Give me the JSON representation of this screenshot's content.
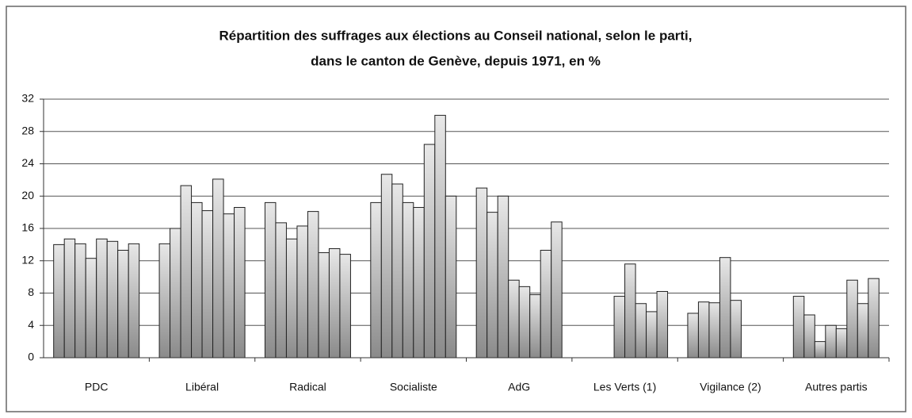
{
  "chart_data": {
    "type": "bar",
    "title": [
      "Répartition des suffrages aux élections au Conseil national, selon le parti,",
      "dans le canton de Genève, depuis 1971, en %"
    ],
    "categories": [
      "PDC",
      "Libéral",
      "Radical",
      "Socialiste",
      "AdG",
      "Les Verts (1)",
      "Vigilance (2)",
      "Autres partis"
    ],
    "series": [
      {
        "color": "#8a8a8a",
        "values": [
          14,
          14.1,
          19.2,
          19.2,
          21,
          null,
          5.5,
          7.6
        ]
      },
      {
        "color": "#8a8a8a",
        "values": [
          14.7,
          16,
          16.7,
          22.7,
          18,
          null,
          6.9,
          5.3
        ]
      },
      {
        "color": "#8a8a8a",
        "values": [
          14.1,
          21.3,
          14.7,
          21.5,
          20,
          null,
          6.8,
          2
        ]
      },
      {
        "color": "#8a8a8a",
        "values": [
          12.3,
          19.2,
          16.3,
          19.2,
          9.6,
          7.6,
          12.4,
          4
        ]
      },
      {
        "color": "#8a8a8a",
        "values": [
          14.7,
          18.2,
          18.1,
          18.6,
          8.8,
          11.6,
          7.1,
          3.6
        ]
      },
      {
        "color": "#8a8a8a",
        "values": [
          14.4,
          22.1,
          13,
          26.4,
          7.8,
          6.7,
          null,
          9.6
        ]
      },
      {
        "color": "#8a8a8a",
        "values": [
          13.3,
          17.8,
          13.5,
          30,
          13.3,
          5.7,
          null,
          6.7
        ]
      },
      {
        "color": "#8a8a8a",
        "values": [
          14.1,
          18.6,
          12.8,
          20,
          16.8,
          8.2,
          null,
          9.8
        ]
      }
    ],
    "ylim": [
      0,
      32
    ],
    "yticks": [
      0,
      4,
      8,
      12,
      16,
      20,
      24,
      28,
      32
    ],
    "grid": true
  }
}
